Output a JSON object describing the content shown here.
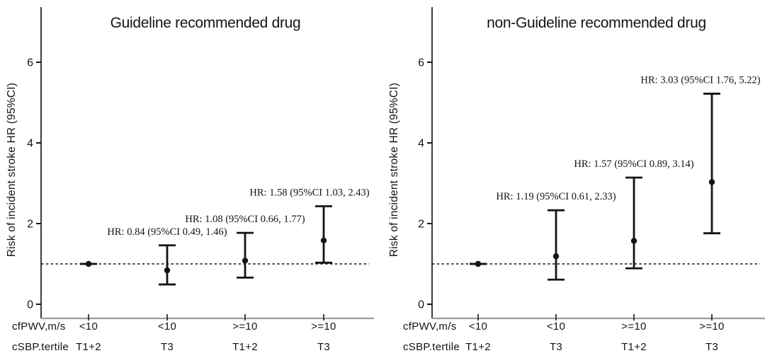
{
  "colors": {
    "data": "#141414",
    "y_axis_line": "#3c3c3c",
    "x_axis_line": "#9b9b9b",
    "text": "#141414"
  },
  "chart_data": [
    {
      "type": "errorbar",
      "title": "Guideline recommended drug",
      "ylabel": "Risk of incident stroke HR (95%CI)",
      "ylim": [
        0,
        7.3
      ],
      "yticks": [
        0,
        2,
        4,
        6
      ],
      "reference_line": 1.0,
      "grid": "off",
      "x_rows": [
        {
          "header": "cfPWV,m/s",
          "values": [
            "<10",
            "<10",
            ">=10",
            ">=10"
          ]
        },
        {
          "header": "cSBP.tertile",
          "values": [
            "T1+2",
            "T3",
            "T1+2",
            "T3"
          ]
        }
      ],
      "points": [
        {
          "hr": 1.0,
          "ci_low": 1.0,
          "ci_high": 1.0,
          "annotation": ""
        },
        {
          "hr": 0.84,
          "ci_low": 0.49,
          "ci_high": 1.46,
          "annotation": "HR: 0.84 (95%CI 0.49, 1.46)"
        },
        {
          "hr": 1.08,
          "ci_low": 0.66,
          "ci_high": 1.77,
          "annotation": "HR: 1.08 (95%CI 0.66, 1.77)"
        },
        {
          "hr": 1.58,
          "ci_low": 1.03,
          "ci_high": 2.43,
          "annotation": "HR: 1.58 (95%CI 1.03, 2.43)"
        }
      ]
    },
    {
      "type": "errorbar",
      "title": "non-Guideline recommended drug",
      "ylabel": "Risk of incident stroke HR (95%CI)",
      "ylim": [
        0,
        7.3
      ],
      "yticks": [
        0,
        2,
        4,
        6
      ],
      "reference_line": 1.0,
      "grid": "off",
      "x_rows": [
        {
          "header": "cfPWV,m/s",
          "values": [
            "<10",
            "<10",
            ">=10",
            ">=10"
          ]
        },
        {
          "header": "cSBP.tertile",
          "values": [
            "T1+2",
            "T3",
            "T1+2",
            "T3"
          ]
        }
      ],
      "points": [
        {
          "hr": 1.0,
          "ci_low": 1.0,
          "ci_high": 1.0,
          "annotation": ""
        },
        {
          "hr": 1.19,
          "ci_low": 0.61,
          "ci_high": 2.33,
          "annotation": "HR: 1.19 (95%CI 0.61, 2.33)"
        },
        {
          "hr": 1.57,
          "ci_low": 0.89,
          "ci_high": 3.14,
          "annotation": "HR: 1.57 (95%CI 0.89, 3.14)"
        },
        {
          "hr": 3.03,
          "ci_low": 1.76,
          "ci_high": 5.22,
          "annotation": "HR: 3.03 (95%CI 1.76, 5.22)"
        }
      ]
    }
  ]
}
